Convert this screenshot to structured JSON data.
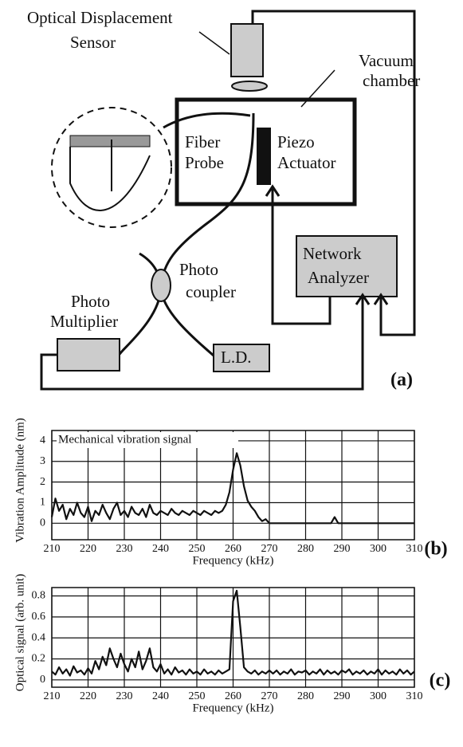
{
  "diagram": {
    "labels": [
      "Optical Displacement",
      "Sensor",
      "Vacuum",
      "chamber",
      "Fiber",
      "Probe",
      "Piezo",
      "Actuator",
      "Network",
      "Analyzer",
      "Photo",
      "coupler",
      "Photo",
      "Multiplier",
      "L.D.",
      "(a)"
    ]
  },
  "chart_data": [
    {
      "type": "line",
      "panel": "(b)",
      "annotation": "Mechanical vibration signal",
      "x_label": "Frequency (kHz)",
      "y_label": "Vibration Amplitude (nm)",
      "xlim": [
        210,
        310
      ],
      "xticks": [
        210,
        220,
        230,
        240,
        250,
        260,
        270,
        280,
        290,
        300,
        310
      ],
      "ylim": [
        -0.8,
        4.5
      ],
      "yticks": [
        0,
        1,
        2,
        3,
        4
      ],
      "grid": true,
      "x": [
        210,
        211,
        212,
        213,
        214,
        215,
        216,
        217,
        218,
        219,
        220,
        221,
        222,
        223,
        224,
        225,
        226,
        227,
        228,
        229,
        230,
        231,
        232,
        233,
        234,
        235,
        236,
        237,
        238,
        239,
        240,
        241,
        242,
        243,
        244,
        245,
        246,
        247,
        248,
        249,
        250,
        251,
        252,
        253,
        254,
        255,
        256,
        257,
        258,
        259,
        260,
        261,
        262,
        263,
        264,
        265,
        266,
        267,
        268,
        269,
        270,
        271,
        272,
        273,
        274,
        275,
        276,
        277,
        278,
        279,
        280,
        281,
        282,
        283,
        284,
        285,
        286,
        287,
        288,
        289,
        290,
        291,
        292,
        293,
        294,
        295,
        296,
        297,
        298,
        299,
        300,
        301,
        302,
        303,
        304,
        305,
        306,
        307,
        308,
        309,
        310
      ],
      "series": [
        {
          "color": "#111111",
          "values": [
            0.3,
            1.2,
            0.6,
            0.9,
            0.2,
            0.7,
            0.4,
            1.0,
            0.5,
            0.3,
            0.8,
            0.1,
            0.6,
            0.4,
            0.9,
            0.5,
            0.2,
            0.7,
            1.0,
            0.4,
            0.6,
            0.3,
            0.8,
            0.5,
            0.4,
            0.7,
            0.3,
            0.9,
            0.5,
            0.4,
            0.6,
            0.5,
            0.4,
            0.7,
            0.5,
            0.4,
            0.6,
            0.5,
            0.4,
            0.6,
            0.5,
            0.4,
            0.6,
            0.5,
            0.4,
            0.6,
            0.5,
            0.6,
            0.9,
            1.5,
            2.6,
            3.4,
            2.8,
            1.8,
            1.1,
            0.8,
            0.6,
            0.3,
            0.1,
            0.2,
            0.0,
            0.0,
            0.0,
            0.0,
            0.0,
            0.0,
            0.0,
            0.0,
            0.0,
            0.0,
            0.0,
            0.0,
            0.0,
            0.0,
            0.0,
            0.0,
            0.0,
            0.0,
            0.3,
            0.0,
            0.0,
            0.0,
            0.0,
            0.0,
            0.0,
            0.0,
            0.0,
            0.0,
            0.0,
            0.0,
            0.0,
            0.0,
            0.0,
            0.0,
            0.0,
            0.0,
            0.0,
            0.0,
            0.0,
            0.0,
            0.0
          ]
        }
      ]
    },
    {
      "type": "line",
      "panel": "(c)",
      "x_label": "Frequency (kHz)",
      "y_label": "Optical signal (arb. unit)",
      "xlim": [
        210,
        310
      ],
      "xticks": [
        210,
        220,
        230,
        240,
        250,
        260,
        270,
        280,
        290,
        300,
        310
      ],
      "ylim": [
        -0.07,
        0.88
      ],
      "yticks": [
        0,
        0.2,
        0.4,
        0.6,
        0.8
      ],
      "grid": true,
      "x": [
        210,
        211,
        212,
        213,
        214,
        215,
        216,
        217,
        218,
        219,
        220,
        221,
        222,
        223,
        224,
        225,
        226,
        227,
        228,
        229,
        230,
        231,
        232,
        233,
        234,
        235,
        236,
        237,
        238,
        239,
        240,
        241,
        242,
        243,
        244,
        245,
        246,
        247,
        248,
        249,
        250,
        251,
        252,
        253,
        254,
        255,
        256,
        257,
        258,
        259,
        260,
        261,
        262,
        263,
        264,
        265,
        266,
        267,
        268,
        269,
        270,
        271,
        272,
        273,
        274,
        275,
        276,
        277,
        278,
        279,
        280,
        281,
        282,
        283,
        284,
        285,
        286,
        287,
        288,
        289,
        290,
        291,
        292,
        293,
        294,
        295,
        296,
        297,
        298,
        299,
        300,
        301,
        302,
        303,
        304,
        305,
        306,
        307,
        308,
        309,
        310
      ],
      "series": [
        {
          "color": "#111111",
          "values": [
            0.08,
            0.05,
            0.12,
            0.06,
            0.1,
            0.04,
            0.13,
            0.07,
            0.09,
            0.05,
            0.11,
            0.06,
            0.18,
            0.1,
            0.22,
            0.14,
            0.3,
            0.2,
            0.12,
            0.25,
            0.15,
            0.08,
            0.2,
            0.12,
            0.27,
            0.1,
            0.18,
            0.3,
            0.12,
            0.08,
            0.15,
            0.06,
            0.1,
            0.05,
            0.12,
            0.07,
            0.09,
            0.05,
            0.1,
            0.06,
            0.08,
            0.05,
            0.1,
            0.06,
            0.08,
            0.05,
            0.09,
            0.06,
            0.08,
            0.1,
            0.75,
            0.85,
            0.5,
            0.12,
            0.08,
            0.06,
            0.09,
            0.05,
            0.08,
            0.06,
            0.09,
            0.06,
            0.09,
            0.05,
            0.08,
            0.06,
            0.1,
            0.05,
            0.08,
            0.07,
            0.09,
            0.05,
            0.08,
            0.06,
            0.1,
            0.05,
            0.09,
            0.06,
            0.08,
            0.05,
            0.09,
            0.07,
            0.1,
            0.05,
            0.08,
            0.06,
            0.09,
            0.05,
            0.08,
            0.06,
            0.1,
            0.05,
            0.09,
            0.06,
            0.08,
            0.05,
            0.1,
            0.06,
            0.09,
            0.05,
            0.08
          ]
        }
      ]
    }
  ]
}
